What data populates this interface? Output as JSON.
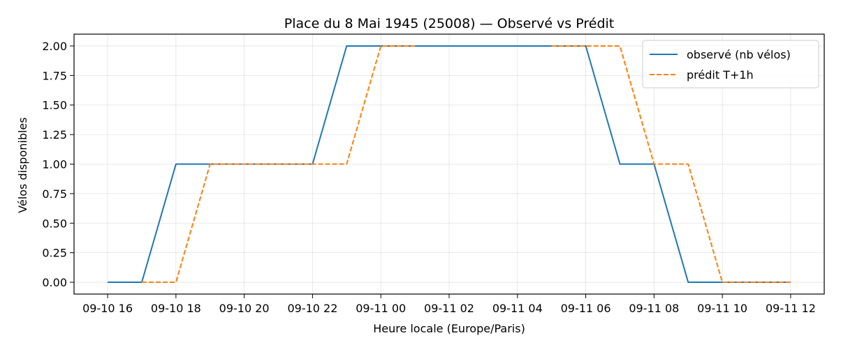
{
  "chart_data": {
    "type": "line",
    "title": "Place du 8 Mai 1945 (25008) — Observé vs Prédit",
    "xlabel": "Heure locale (Europe/Paris)",
    "ylabel": "Vélos disponibles",
    "x_tick_labels": [
      "09-10 16",
      "09-10 18",
      "09-10 20",
      "09-10 22",
      "09-11 00",
      "09-11 02",
      "09-11 04",
      "09-11 06",
      "09-11 08",
      "09-11 10",
      "09-11 12"
    ],
    "x_ticks": [
      "2025-09-10 16:00",
      "2025-09-10 18:00",
      "2025-09-10 20:00",
      "2025-09-10 22:00",
      "2025-09-11 00:00",
      "2025-09-11 02:00",
      "2025-09-11 04:00",
      "2025-09-11 06:00",
      "2025-09-11 08:00",
      "2025-09-11 10:00",
      "2025-09-11 12:00"
    ],
    "xlim": [
      "2025-09-10 15:01",
      "2025-09-11 12:59"
    ],
    "y_tick_labels": [
      "0.00",
      "0.25",
      "0.50",
      "0.75",
      "1.00",
      "1.25",
      "1.50",
      "1.75",
      "2.00"
    ],
    "ylim": [
      -0.1,
      2.1
    ],
    "grid": true,
    "legend_position": "top-right",
    "series": [
      {
        "name": "observé (nb vélos)",
        "color": "#1f77b4",
        "style": "solid",
        "x": [
          "2025-09-10 16:00",
          "2025-09-10 17:00",
          "2025-09-10 18:00",
          "2025-09-10 19:00",
          "2025-09-10 20:00",
          "2025-09-10 21:00",
          "2025-09-10 22:00",
          "2025-09-10 23:00",
          "2025-09-11 00:00",
          "2025-09-11 01:00",
          "2025-09-11 02:00",
          "2025-09-11 03:00",
          "2025-09-11 04:00",
          "2025-09-11 05:00",
          "2025-09-11 06:00",
          "2025-09-11 07:00",
          "2025-09-11 08:00",
          "2025-09-11 09:00",
          "2025-09-11 10:00",
          "2025-09-11 11:00",
          "2025-09-11 12:00"
        ],
        "values": [
          0,
          0,
          1,
          1,
          1,
          1,
          1,
          2,
          2,
          2,
          2,
          2,
          2,
          2,
          2,
          1,
          1,
          0,
          0,
          0,
          0
        ]
      },
      {
        "name": "prédit T+1h",
        "color": "#ff7f0e",
        "style": "dashed",
        "segments": [
          {
            "x": [
              "2025-09-10 17:00",
              "2025-09-10 18:00",
              "2025-09-10 19:00",
              "2025-09-10 20:00",
              "2025-09-10 21:00",
              "2025-09-10 22:00",
              "2025-09-10 23:00",
              "2025-09-11 00:00",
              "2025-09-11 01:00"
            ],
            "values": [
              0,
              0,
              1,
              1,
              1,
              1,
              1,
              2,
              2
            ]
          },
          {
            "x": [
              "2025-09-11 05:00",
              "2025-09-11 06:00",
              "2025-09-11 07:00",
              "2025-09-11 08:00",
              "2025-09-11 09:00",
              "2025-09-11 10:00",
              "2025-09-11 11:00",
              "2025-09-11 12:00"
            ],
            "values": [
              2,
              2,
              2,
              1,
              1,
              0,
              0,
              0
            ]
          }
        ]
      }
    ]
  }
}
